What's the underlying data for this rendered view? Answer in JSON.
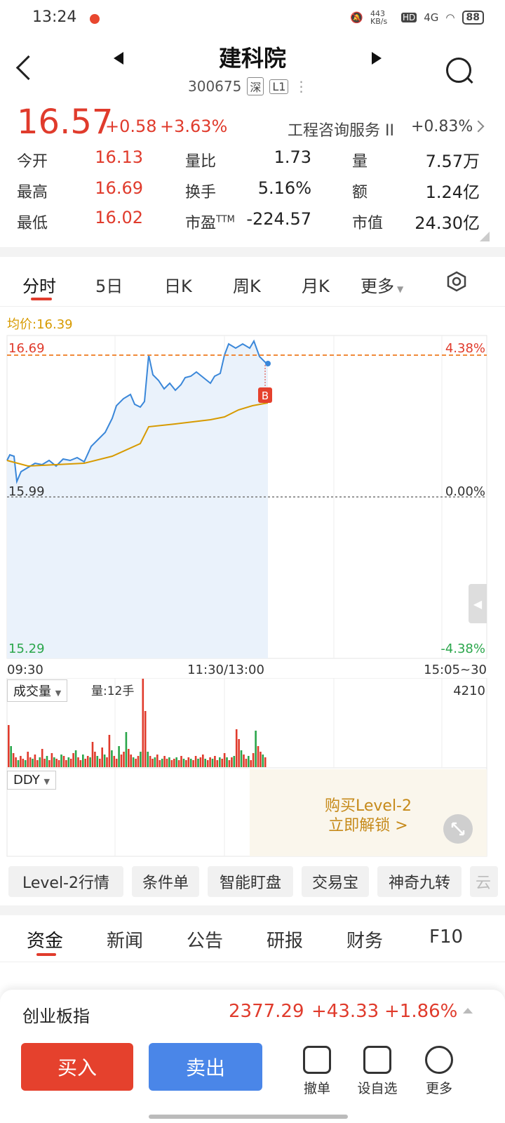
{
  "status_bar": {
    "time": "13:24",
    "net_speed": "443 KB/s",
    "hd": "HD",
    "signal": "4G",
    "battery": "88"
  },
  "header": {
    "name": "建科院",
    "code": "300675",
    "market_tag": "深",
    "level_tag": "L1"
  },
  "quote": {
    "price": "16.57",
    "change": "+0.58",
    "change_pct": "+3.63%",
    "sector": "工程咨询服务 II",
    "sector_change": "+0.83%",
    "stats": [
      {
        "label": "今开",
        "value": "16.13"
      },
      {
        "label": "量比",
        "value": "1.73"
      },
      {
        "label": "量",
        "value": "7.57万"
      },
      {
        "label": "最高",
        "value": "16.69"
      },
      {
        "label": "换手",
        "value": "5.16%"
      },
      {
        "label": "额",
        "value": "1.24亿"
      },
      {
        "label": "最低",
        "value": "16.02"
      },
      {
        "label": "市盈",
        "sup": "TTM",
        "value": "-224.57"
      },
      {
        "label": "市值",
        "value": "24.30亿"
      }
    ]
  },
  "chart_tabs": [
    "分时",
    "5日",
    "日K",
    "周K",
    "月K",
    "更多"
  ],
  "chart": {
    "avg_label": "均价:16.39",
    "y_high": "16.69",
    "y_mid": "15.99",
    "y_low": "15.29",
    "pct_high": "4.38%",
    "pct_mid": "0.00%",
    "pct_low": "-4.38%",
    "x_labels": [
      "09:30",
      "11:30/13:00",
      "15:05~30"
    ],
    "marker": "B"
  },
  "chart_data": {
    "type": "line",
    "series": [],
    "ylim": [
      15.29,
      16.69
    ],
    "x_start": "09:30",
    "x_end": "15:05"
  },
  "volume": {
    "selector": "成交量",
    "qty": "量:12手",
    "max": "4210"
  },
  "ddy": {
    "selector": "DDY"
  },
  "level2": {
    "line1": "购买Level-2",
    "line2": "立即解锁 >"
  },
  "chips": [
    "Level-2行情",
    "条件单",
    "智能盯盘",
    "交易宝",
    "神奇九转",
    "云"
  ],
  "bottom_tabs": [
    "资金",
    "新闻",
    "公告",
    "研报",
    "财务",
    "F10"
  ],
  "index_bar": {
    "name": "创业板指",
    "value": "2377.29",
    "change": "+43.33",
    "change_pct": "+1.86%"
  },
  "actions": {
    "buy": "买入",
    "sell": "卖出",
    "tools": [
      "撤单",
      "设自选",
      "更多"
    ]
  },
  "colors": {
    "up": "#e03b2c",
    "down": "#2aa64b",
    "accent": "#4a86e8",
    "avg": "#d79a00"
  }
}
